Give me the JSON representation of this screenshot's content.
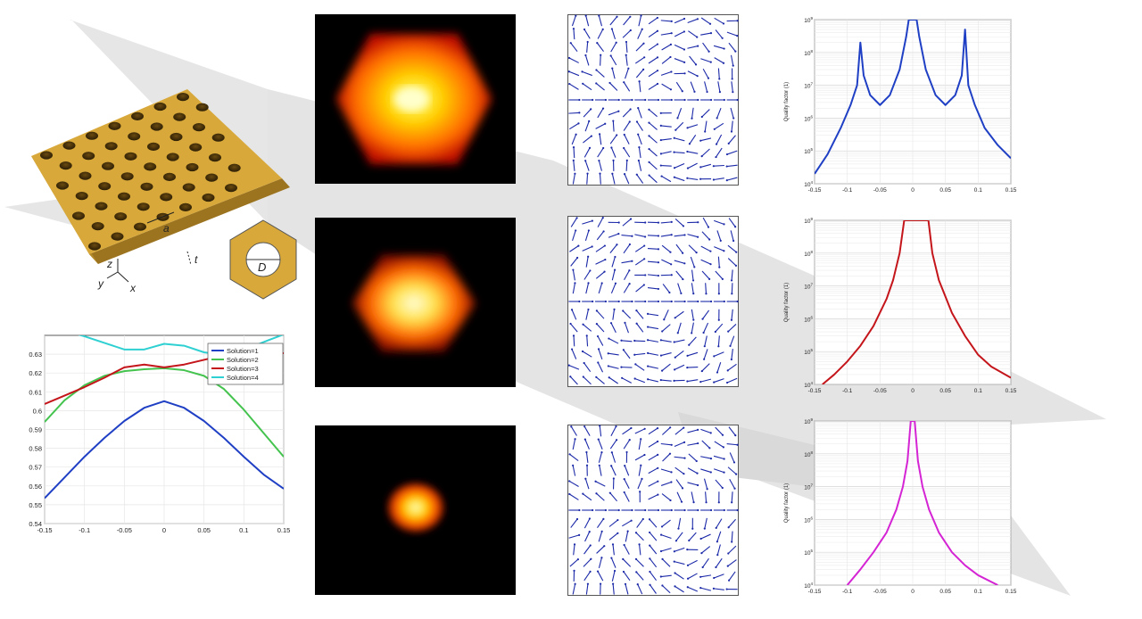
{
  "colors": {
    "blue": "#1f3fc4",
    "green": "#45c34f",
    "red": "#c4151b",
    "cyan": "#2fd0d2",
    "magenta": "#d424d4",
    "gold": "#d8a93a",
    "arrow_bg": "#e3e3e3"
  },
  "structure": {
    "labels": {
      "a": "a",
      "t": "t",
      "z": "z",
      "y": "y",
      "x": "x",
      "D": "D"
    }
  },
  "quality_ylabel": "Quality factor (1)",
  "chart_data": [
    {
      "type": "line",
      "id": "band-diagram",
      "x": [
        -0.15,
        -0.125,
        -0.1,
        -0.075,
        -0.05,
        -0.025,
        0,
        0.025,
        0.05,
        0.075,
        0.1,
        0.125,
        0.15
      ],
      "xlim": [
        -0.15,
        0.15
      ],
      "ylim": [
        0.54,
        0.64
      ],
      "xticks": [
        "-0.15",
        "-0.1",
        "-0.05",
        "0",
        "0.05",
        "0.1",
        "0.15"
      ],
      "xtick_values": [
        -0.15,
        -0.1,
        -0.05,
        0,
        0.05,
        0.1,
        0.15
      ],
      "yticks": [
        "0.54",
        "0.55",
        "0.56",
        "0.57",
        "0.58",
        "0.59",
        "0.6",
        "0.61",
        "0.62",
        "0.63"
      ],
      "ytick_values": [
        0.54,
        0.55,
        0.56,
        0.57,
        0.58,
        0.59,
        0.6,
        0.61,
        0.62,
        0.63
      ],
      "legend_position": "top-right",
      "series": [
        {
          "name": "Solution=1",
          "color": "#1f3fc4",
          "values": [
            0.5535,
            0.5645,
            0.5755,
            0.5855,
            0.5945,
            0.6015,
            0.605,
            0.6015,
            0.5945,
            0.5855,
            0.5755,
            0.566,
            0.5585
          ]
        },
        {
          "name": "Solution=2",
          "color": "#45c34f",
          "values": [
            0.594,
            0.6055,
            0.6135,
            0.6185,
            0.621,
            0.622,
            0.6225,
            0.6215,
            0.6185,
            0.6115,
            0.6005,
            0.588,
            0.5755
          ]
        },
        {
          "name": "Solution=3",
          "color": "#c4151b",
          "values": [
            0.6035,
            0.608,
            0.6125,
            0.6175,
            0.623,
            0.6245,
            0.623,
            0.6245,
            0.627,
            0.6295,
            0.6305,
            0.6305,
            0.6305
          ]
        },
        {
          "name": "Solution=4",
          "color": "#2fd0d2",
          "values": [
            0.641,
            0.6425,
            0.6395,
            0.636,
            0.6325,
            0.6325,
            0.6355,
            0.6345,
            0.631,
            0.6295,
            0.632,
            0.6365,
            0.6405
          ]
        }
      ]
    },
    {
      "type": "line",
      "id": "quality-factor-1",
      "color": "#1f3fc4",
      "ylabel": "Quality factor (1)",
      "yscale": "log",
      "xlim": [
        -0.15,
        0.15
      ],
      "ylim": [
        10000,
        1000000000
      ],
      "xticks": [
        "-0.15",
        "-0.1",
        "-0.05",
        "0",
        "0.05",
        "0.1",
        "0.15"
      ],
      "xtick_values": [
        -0.15,
        -0.1,
        -0.05,
        0,
        0.05,
        0.1,
        0.15
      ],
      "ytick_exponents": [
        4,
        5,
        6,
        7,
        8,
        9
      ],
      "x": [
        -0.15,
        -0.13,
        -0.11,
        -0.095,
        -0.085,
        -0.08,
        -0.075,
        -0.065,
        -0.05,
        -0.035,
        -0.02,
        -0.01,
        -0.006,
        0.006,
        0.01,
        0.02,
        0.035,
        0.05,
        0.065,
        0.075,
        0.08,
        0.085,
        0.095,
        0.11,
        0.13,
        0.15
      ],
      "values": [
        20000,
        80000,
        500000,
        2500000,
        10000000,
        200000000,
        20000000,
        5000000,
        2500000,
        5000000,
        30000000,
        300000000,
        1000000000,
        1000000000,
        300000000,
        30000000,
        5000000,
        2500000,
        5000000,
        20000000,
        500000000,
        10000000,
        2500000,
        500000,
        150000,
        60000
      ]
    },
    {
      "type": "line",
      "id": "quality-factor-2",
      "color": "#c4151b",
      "ylabel": "Quality factor (1)",
      "yscale": "log",
      "xlim": [
        -0.15,
        0.15
      ],
      "ylim": [
        10000,
        1000000000
      ],
      "xticks": [
        "-0.15",
        "-0.1",
        "-0.05",
        "0",
        "0.05",
        "0.1",
        "0.15"
      ],
      "xtick_values": [
        -0.15,
        -0.1,
        -0.05,
        0,
        0.05,
        0.1,
        0.15
      ],
      "ytick_exponents": [
        4,
        5,
        6,
        7,
        8,
        9
      ],
      "x": [
        -0.138,
        -0.12,
        -0.1,
        -0.08,
        -0.06,
        -0.04,
        -0.03,
        -0.02,
        -0.013,
        0.024,
        0.03,
        0.04,
        0.06,
        0.08,
        0.1,
        0.12,
        0.15
      ],
      "values": [
        10000,
        20000,
        50000,
        150000,
        600000,
        4000000,
        15000000,
        100000000,
        1000000000,
        1000000000,
        100000000,
        15000000,
        1500000,
        300000,
        80000,
        35000,
        16000
      ]
    },
    {
      "type": "line",
      "id": "quality-factor-3",
      "color": "#d424d4",
      "ylabel": "Quality factor (1)",
      "yscale": "log",
      "xlim": [
        -0.15,
        0.15
      ],
      "ylim": [
        10000,
        1000000000
      ],
      "xticks": [
        "-0.15",
        "-0.1",
        "-0.05",
        "0",
        "0.05",
        "0.1",
        "0.15"
      ],
      "xtick_values": [
        -0.15,
        -0.1,
        -0.05,
        0,
        0.05,
        0.1,
        0.15
      ],
      "ytick_exponents": [
        4,
        5,
        6,
        7,
        8,
        9
      ],
      "x": [
        -0.1,
        -0.08,
        -0.06,
        -0.04,
        -0.025,
        -0.015,
        -0.008,
        -0.003,
        0.003,
        0.008,
        0.015,
        0.025,
        0.04,
        0.06,
        0.08,
        0.1,
        0.13
      ],
      "values": [
        10000,
        30000,
        100000,
        400000,
        2000000,
        10000000,
        60000000,
        1000000000,
        1000000000,
        60000000,
        10000000,
        2000000,
        400000,
        100000,
        40000,
        20000,
        10000
      ]
    }
  ]
}
